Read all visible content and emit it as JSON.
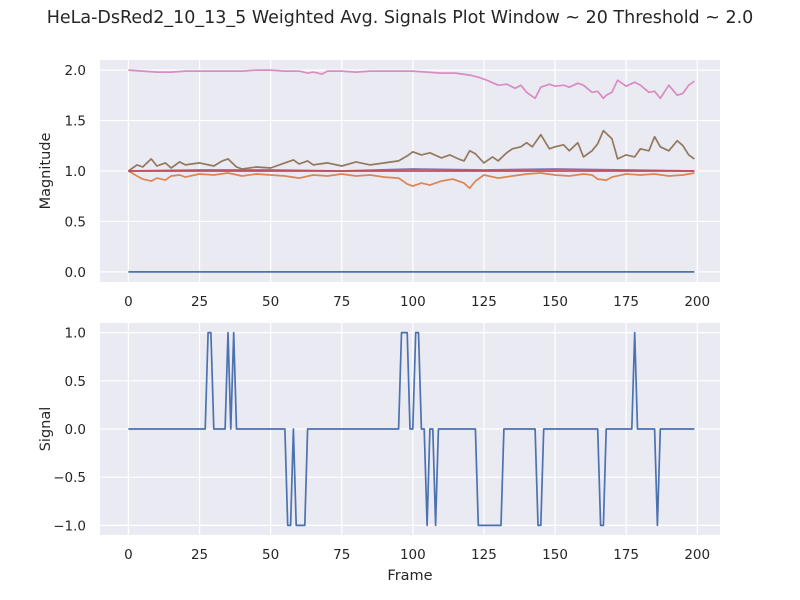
{
  "figure": {
    "title": "HeLa-DsRed2_10_13_5 Weighted Avg. Signals Plot Window ~ 20 Threshold ~ 2.0",
    "background": "#ffffff",
    "axes_background": "#eaeaf2",
    "grid_color": "#ffffff"
  },
  "chart_data": [
    {
      "type": "line",
      "title": "",
      "xlabel": "",
      "ylabel": "Magnitude",
      "xlim": [
        -10,
        208
      ],
      "ylim": [
        -0.1,
        2.1
      ],
      "xticks": [
        0,
        25,
        50,
        75,
        100,
        125,
        150,
        175,
        200
      ],
      "yticks": [
        0.0,
        0.5,
        1.0,
        1.5,
        2.0
      ],
      "ytick_labels": [
        "0.0",
        "0.5",
        "1.0",
        "1.5",
        "2.0"
      ],
      "grid": true,
      "series": [
        {
          "color": "#4c72b0",
          "x": [
            0,
            199
          ],
          "y": [
            0.0,
            0.0
          ]
        },
        {
          "color": "#dd8452",
          "x": [
            0,
            3,
            5,
            8,
            10,
            13,
            15,
            18,
            20,
            25,
            30,
            35,
            40,
            45,
            50,
            55,
            60,
            65,
            70,
            75,
            80,
            85,
            90,
            95,
            98,
            100,
            103,
            106,
            110,
            114,
            118,
            120,
            122,
            125,
            130,
            135,
            140,
            145,
            150,
            155,
            160,
            163,
            165,
            168,
            170,
            175,
            180,
            185,
            190,
            195,
            199
          ],
          "y": [
            1.0,
            0.95,
            0.92,
            0.9,
            0.93,
            0.91,
            0.95,
            0.96,
            0.94,
            0.97,
            0.96,
            0.98,
            0.95,
            0.97,
            0.96,
            0.95,
            0.93,
            0.96,
            0.95,
            0.97,
            0.95,
            0.96,
            0.94,
            0.93,
            0.87,
            0.85,
            0.88,
            0.86,
            0.9,
            0.92,
            0.88,
            0.83,
            0.9,
            0.96,
            0.93,
            0.95,
            0.97,
            0.98,
            0.96,
            0.95,
            0.97,
            0.96,
            0.92,
            0.91,
            0.94,
            0.97,
            0.96,
            0.97,
            0.95,
            0.96,
            0.98
          ]
        },
        {
          "color": "#937860",
          "x": [
            0,
            3,
            5,
            8,
            10,
            13,
            15,
            18,
            20,
            25,
            30,
            33,
            35,
            38,
            40,
            45,
            50,
            55,
            58,
            60,
            63,
            65,
            70,
            75,
            80,
            85,
            90,
            95,
            98,
            100,
            103,
            106,
            110,
            113,
            116,
            118,
            120,
            122,
            125,
            128,
            130,
            133,
            135,
            138,
            140,
            142,
            145,
            148,
            150,
            153,
            155,
            158,
            160,
            163,
            165,
            167,
            170,
            172,
            175,
            178,
            180,
            183,
            185,
            187,
            190,
            193,
            195,
            197,
            199
          ],
          "y": [
            1.0,
            1.06,
            1.04,
            1.12,
            1.05,
            1.08,
            1.03,
            1.09,
            1.06,
            1.08,
            1.05,
            1.1,
            1.12,
            1.04,
            1.02,
            1.04,
            1.03,
            1.08,
            1.11,
            1.07,
            1.1,
            1.06,
            1.08,
            1.05,
            1.09,
            1.06,
            1.08,
            1.1,
            1.15,
            1.19,
            1.16,
            1.18,
            1.13,
            1.16,
            1.12,
            1.1,
            1.2,
            1.17,
            1.08,
            1.14,
            1.1,
            1.18,
            1.22,
            1.24,
            1.28,
            1.24,
            1.36,
            1.22,
            1.24,
            1.26,
            1.2,
            1.28,
            1.14,
            1.2,
            1.27,
            1.4,
            1.32,
            1.12,
            1.16,
            1.14,
            1.22,
            1.2,
            1.34,
            1.24,
            1.2,
            1.3,
            1.25,
            1.16,
            1.12
          ]
        },
        {
          "color": "#8172b3",
          "x": [
            0,
            25,
            50,
            75,
            100,
            125,
            150,
            175,
            199
          ],
          "y": [
            1.0,
            1.01,
            1.01,
            1.0,
            1.02,
            1.01,
            1.02,
            1.01,
            1.0
          ]
        },
        {
          "color": "#c44e52",
          "x": [
            0,
            199
          ],
          "y": [
            1.0,
            1.0
          ]
        },
        {
          "color": "#da8bc3",
          "x": [
            0,
            5,
            10,
            15,
            20,
            25,
            30,
            35,
            40,
            45,
            50,
            55,
            60,
            63,
            65,
            68,
            70,
            75,
            80,
            85,
            90,
            95,
            100,
            105,
            110,
            115,
            120,
            123,
            126,
            130,
            133,
            136,
            138,
            140,
            143,
            145,
            148,
            150,
            153,
            155,
            158,
            160,
            163,
            165,
            167,
            168,
            170,
            172,
            175,
            178,
            180,
            183,
            185,
            187,
            190,
            193,
            195,
            197,
            199
          ],
          "y": [
            2.0,
            1.99,
            1.98,
            1.98,
            1.99,
            1.99,
            1.99,
            1.99,
            1.99,
            2.0,
            2.0,
            1.99,
            1.99,
            1.97,
            1.98,
            1.96,
            1.99,
            1.99,
            1.98,
            1.99,
            1.99,
            1.99,
            1.99,
            1.98,
            1.97,
            1.97,
            1.95,
            1.93,
            1.9,
            1.85,
            1.86,
            1.82,
            1.85,
            1.78,
            1.72,
            1.83,
            1.86,
            1.84,
            1.85,
            1.83,
            1.87,
            1.85,
            1.78,
            1.79,
            1.72,
            1.75,
            1.78,
            1.9,
            1.84,
            1.88,
            1.85,
            1.78,
            1.79,
            1.72,
            1.85,
            1.75,
            1.77,
            1.85,
            1.89
          ]
        }
      ]
    },
    {
      "type": "line",
      "title": "",
      "xlabel": "Frame",
      "ylabel": "Signal",
      "xlim": [
        -10,
        208
      ],
      "ylim": [
        -1.1,
        1.1
      ],
      "xticks": [
        0,
        25,
        50,
        75,
        100,
        125,
        150,
        175,
        200
      ],
      "yticks": [
        -1.0,
        -0.5,
        0.0,
        0.5,
        1.0
      ],
      "ytick_labels": [
        "−1.0",
        "−0.5",
        "0.0",
        "0.5",
        "1.0"
      ],
      "grid": true,
      "series": [
        {
          "color": "#4c72b0",
          "x": [
            0,
            27,
            28,
            29,
            30,
            34,
            35,
            36,
            37,
            38,
            55,
            56,
            57,
            58,
            59,
            60,
            62,
            63,
            95,
            96,
            98,
            99,
            100,
            101,
            102,
            103,
            104,
            105,
            106,
            107,
            108,
            109,
            110,
            111,
            122,
            123,
            131,
            132,
            143,
            144,
            145,
            146,
            165,
            166,
            167,
            168,
            177,
            178,
            179,
            180,
            185,
            186,
            187,
            188,
            199
          ],
          "y": [
            0,
            0,
            1,
            1,
            0,
            0,
            1,
            0,
            1,
            0,
            0,
            -1,
            -1,
            0,
            -1,
            -1,
            -1,
            0,
            0,
            1,
            1,
            0,
            0,
            1,
            1,
            0,
            0,
            -1,
            0,
            0,
            -1,
            0,
            0,
            0,
            0,
            -1,
            -1,
            0,
            0,
            -1,
            -1,
            0,
            0,
            -1,
            -1,
            0,
            0,
            1,
            0,
            0,
            0,
            -1,
            0,
            0,
            0
          ]
        }
      ]
    }
  ]
}
